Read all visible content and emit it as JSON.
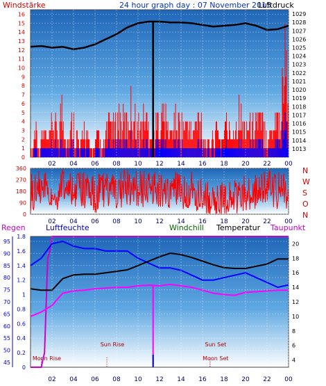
{
  "header": {
    "title": "24 hour graph day : 07 November 2015",
    "left_label": "Windstärke",
    "right_label": "Luftdruck"
  },
  "colors": {
    "wind": "#ff0000",
    "pressure": "#000000",
    "rain_scale": "#0000cc",
    "temperature": "#000000",
    "humidity": "#0000ff",
    "dewpoint": "#ff00ff",
    "windchill": "#006600",
    "rain_label": "#cc00cc",
    "plot_bg_top": "#1e6fc0",
    "plot_bg_bottom": "#ffffff"
  },
  "top_panel": {
    "y_left_ticks": [
      "0",
      "1",
      "2",
      "3",
      "4",
      "5",
      "6",
      "7",
      "8",
      "9",
      "10",
      "11",
      "12",
      "13",
      "14",
      "15",
      "16"
    ],
    "y_right_ticks": [
      "1013",
      "1014",
      "1015",
      "1016",
      "1017",
      "1018",
      "1019",
      "1020",
      "1021",
      "1022",
      "1023",
      "1024",
      "1025",
      "1026",
      "1027",
      "1028",
      "1029"
    ],
    "x_ticks": [
      "02",
      "04",
      "06",
      "08",
      "10",
      "12",
      "14",
      "16",
      "18",
      "20",
      "22",
      "00"
    ]
  },
  "mid_panel": {
    "y_ticks": [
      "0",
      "90",
      "180",
      "270",
      "360"
    ],
    "compass": [
      "N",
      "W",
      "S",
      "O",
      "N"
    ],
    "x_ticks": [
      "02",
      "04",
      "06",
      "08",
      "10",
      "12",
      "14",
      "16",
      "18",
      "20",
      "22",
      "00"
    ]
  },
  "bottom_panel": {
    "labels": {
      "rain": "Regen",
      "humidity": "Luftfeuchte",
      "windchill": "Windchill",
      "temperature": "Temperatur",
      "dewpoint": "Taupunkt"
    },
    "rain_ticks": [
      "0",
      "0.2",
      "0.4",
      "0.6",
      "0.8",
      "1",
      "1.2",
      "1.4",
      "1.6",
      "1.8"
    ],
    "humidity_ticks": [
      "45",
      "50",
      "55",
      "60",
      "65",
      "70",
      "75",
      "80",
      "85",
      "90",
      "95"
    ],
    "temp_ticks": [
      "4",
      "6",
      "8",
      "10",
      "12",
      "14",
      "16",
      "18",
      "20"
    ],
    "x_ticks": [
      "02",
      "04",
      "06",
      "08",
      "10",
      "12",
      "14",
      "16",
      "18",
      "20",
      "22",
      "00"
    ],
    "events": {
      "moon_rise": "Moon Rise",
      "sun_rise": "Sun Rise",
      "moon_set": "Moon Set",
      "sun_set": "Sun Set"
    }
  },
  "chart_data": [
    {
      "type": "bar",
      "x_unit": "hour",
      "ylim": [
        0,
        16.5
      ],
      "y2lim": [
        1012,
        1029.5
      ],
      "series": [
        {
          "name": "Windstärke",
          "values": [
            [
              0.2,
              1
            ],
            [
              0.5,
              5
            ],
            [
              0.8,
              1
            ],
            [
              1.2,
              4
            ],
            [
              1.6,
              2
            ],
            [
              2.1,
              5
            ],
            [
              2.6,
              3
            ],
            [
              2.9,
              7
            ],
            [
              3.2,
              4
            ],
            [
              3.5,
              2
            ],
            [
              3.9,
              5
            ],
            [
              4.3,
              3
            ],
            [
              4.6,
              1
            ],
            [
              5.0,
              4
            ],
            [
              5.4,
              2
            ],
            [
              5.8,
              1
            ],
            [
              6.2,
              3
            ],
            [
              6.6,
              1
            ],
            [
              7.0,
              3
            ],
            [
              7.4,
              5
            ],
            [
              7.8,
              4
            ],
            [
              8.2,
              6
            ],
            [
              8.6,
              5
            ],
            [
              9.0,
              5
            ],
            [
              9.4,
              7
            ],
            [
              9.8,
              5
            ],
            [
              10.2,
              4
            ],
            [
              10.6,
              6
            ],
            [
              11.0,
              4
            ],
            [
              11.4,
              3
            ],
            [
              11.8,
              5
            ],
            [
              12.2,
              6
            ],
            [
              12.6,
              5
            ],
            [
              13.0,
              3
            ],
            [
              13.4,
              5
            ],
            [
              13.8,
              5
            ],
            [
              14.2,
              4
            ],
            [
              14.6,
              5
            ],
            [
              15.0,
              3
            ],
            [
              15.4,
              5
            ],
            [
              15.8,
              6
            ],
            [
              16.2,
              2
            ],
            [
              16.6,
              2
            ],
            [
              17.0,
              3
            ],
            [
              17.4,
              4
            ],
            [
              17.8,
              2
            ],
            [
              18.2,
              5
            ],
            [
              18.6,
              3
            ],
            [
              19.0,
              4
            ],
            [
              19.4,
              6
            ],
            [
              19.8,
              4
            ],
            [
              20.2,
              5
            ],
            [
              20.6,
              4
            ],
            [
              21.0,
              6
            ],
            [
              21.4,
              5
            ],
            [
              21.8,
              4
            ],
            [
              22.2,
              3
            ],
            [
              22.6,
              5
            ],
            [
              22.9,
              6
            ],
            [
              23.3,
              5
            ],
            [
              23.6,
              16
            ],
            [
              23.8,
              11
            ]
          ]
        },
        {
          "name": "Luftdruck",
          "values": [
            [
              0,
              1025.1
            ],
            [
              1,
              1025.2
            ],
            [
              2,
              1025.0
            ],
            [
              3,
              1025.1
            ],
            [
              4,
              1024.8
            ],
            [
              5,
              1025.0
            ],
            [
              6,
              1025.4
            ],
            [
              7,
              1026.0
            ],
            [
              8,
              1026.6
            ],
            [
              9,
              1027.4
            ],
            [
              10,
              1027.9
            ],
            [
              11,
              1028.1
            ],
            [
              12,
              1028.1
            ],
            [
              13,
              1028.0
            ],
            [
              14,
              1028.0
            ],
            [
              15,
              1027.9
            ],
            [
              16,
              1027.7
            ],
            [
              17,
              1027.5
            ],
            [
              18,
              1027.6
            ],
            [
              19,
              1027.7
            ],
            [
              20,
              1027.9
            ],
            [
              21,
              1027.6
            ],
            [
              22,
              1027.1
            ],
            [
              23,
              1027.2
            ],
            [
              24,
              1027.6
            ]
          ]
        }
      ]
    },
    {
      "type": "line",
      "x_unit": "hour",
      "ylim": [
        0,
        360
      ],
      "series": [
        {
          "name": "Windrichtung",
          "values": [
            [
              0,
              170
            ],
            [
              1,
              200
            ],
            [
              2,
              160
            ],
            [
              3,
              210
            ],
            [
              4,
              170
            ],
            [
              5,
              190
            ],
            [
              6,
              150
            ],
            [
              7,
              200
            ],
            [
              8,
              180
            ],
            [
              9,
              210
            ],
            [
              10,
              190
            ],
            [
              11,
              220
            ],
            [
              12,
              180
            ],
            [
              13,
              200
            ],
            [
              14,
              170
            ],
            [
              15,
              190
            ],
            [
              16,
              140
            ],
            [
              17,
              110
            ],
            [
              18,
              100
            ],
            [
              19,
              130
            ],
            [
              20,
              180
            ],
            [
              21,
              170
            ],
            [
              22,
              200
            ],
            [
              23,
              190
            ],
            [
              24,
              180
            ]
          ]
        }
      ]
    },
    {
      "type": "line",
      "x_unit": "hour",
      "series": [
        {
          "name": "Temperatur",
          "y_unit": "°C",
          "ylim": [
            3,
            21
          ],
          "values": [
            [
              0,
              13.8
            ],
            [
              1,
              13.6
            ],
            [
              2,
              13.6
            ],
            [
              3,
              15.2
            ],
            [
              4,
              15.7
            ],
            [
              5,
              15.8
            ],
            [
              6,
              15.8
            ],
            [
              7,
              16.0
            ],
            [
              8,
              16.2
            ],
            [
              9,
              16.4
            ],
            [
              10,
              17.0
            ],
            [
              11,
              17.6
            ],
            [
              12,
              18.2
            ],
            [
              13,
              18.7
            ],
            [
              14,
              18.5
            ],
            [
              15,
              18.1
            ],
            [
              16,
              17.6
            ],
            [
              17,
              17.1
            ],
            [
              18,
              16.7
            ],
            [
              19,
              16.6
            ],
            [
              20,
              16.6
            ],
            [
              21,
              16.9
            ],
            [
              22,
              17.2
            ],
            [
              23,
              17.9
            ],
            [
              24,
              17.9
            ]
          ]
        },
        {
          "name": "Luftfeuchte",
          "y_unit": "%",
          "ylim": [
            43,
            97
          ],
          "values": [
            [
              0,
              85
            ],
            [
              1,
              88
            ],
            [
              2,
              94
            ],
            [
              3,
              95
            ],
            [
              4,
              93
            ],
            [
              5,
              92
            ],
            [
              6,
              92
            ],
            [
              7,
              91
            ],
            [
              8,
              91
            ],
            [
              9,
              91
            ],
            [
              10,
              88
            ],
            [
              11,
              86
            ],
            [
              12,
              84
            ],
            [
              13,
              84
            ],
            [
              14,
              83
            ],
            [
              15,
              81
            ],
            [
              16,
              79
            ],
            [
              17,
              79
            ],
            [
              18,
              80
            ],
            [
              19,
              81
            ],
            [
              20,
              82
            ],
            [
              21,
              80
            ],
            [
              22,
              78
            ],
            [
              23,
              76
            ],
            [
              24,
              77
            ]
          ]
        },
        {
          "name": "Taupunkt",
          "y_unit": "°C",
          "ylim": [
            3,
            21
          ],
          "values": [
            [
              0,
              10.0
            ],
            [
              1,
              10.6
            ],
            [
              2,
              11.5
            ],
            [
              3,
              13.2
            ],
            [
              4,
              13.5
            ],
            [
              5,
              13.6
            ],
            [
              6,
              13.8
            ],
            [
              7,
              13.9
            ],
            [
              8,
              14.0
            ],
            [
              9,
              14.0
            ],
            [
              10,
              14.2
            ],
            [
              11,
              14.3
            ],
            [
              12,
              14.2
            ],
            [
              13,
              14.4
            ],
            [
              14,
              14.2
            ],
            [
              15,
              14.0
            ],
            [
              16,
              13.6
            ],
            [
              17,
              13.2
            ],
            [
              18,
              13.0
            ],
            [
              19,
              12.9
            ],
            [
              20,
              13.3
            ],
            [
              21,
              13.4
            ],
            [
              22,
              13.5
            ],
            [
              23,
              13.6
            ],
            [
              24,
              13.6
            ]
          ]
        },
        {
          "name": "Regen",
          "y_unit": "mm",
          "ylim": [
            0,
            1.8
          ],
          "values": [
            [
              0,
              0
            ],
            [
              1,
              0
            ],
            [
              1.3,
              0.2
            ],
            [
              1.6,
              1.5
            ],
            [
              1.8,
              1.6
            ],
            [
              2,
              1.8
            ],
            [
              24,
              1.8
            ]
          ]
        }
      ]
    }
  ]
}
